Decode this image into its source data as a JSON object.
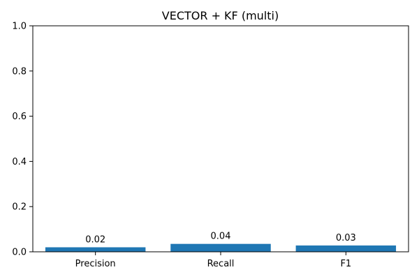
{
  "chart_data": {
    "type": "bar",
    "title": "VECTOR + KF (multi)",
    "categories": [
      "Precision",
      "Recall",
      "F1"
    ],
    "values": [
      0.02,
      0.035,
      0.028
    ],
    "value_labels": [
      "0.02",
      "0.04",
      "0.03"
    ],
    "xlabel": "",
    "ylabel": "",
    "ylim": [
      0,
      1.0
    ],
    "yticks": [
      0.0,
      0.2,
      0.4,
      0.6,
      0.8,
      1.0
    ],
    "ytick_labels": [
      "0.0",
      "0.2",
      "0.4",
      "0.6",
      "0.8",
      "1.0"
    ],
    "grid": false,
    "bar_color": "#1f77b4"
  }
}
